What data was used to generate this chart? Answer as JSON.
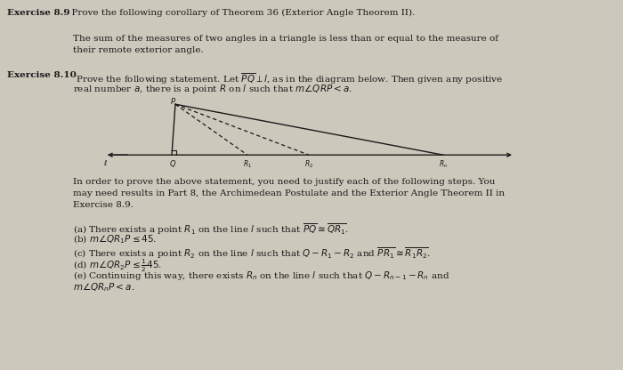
{
  "bg_color": "#cdc8bc",
  "text_color": "#1a1a1a",
  "line_color": "#1a1a1a",
  "fig_w": 7.0,
  "fig_h": 4.16,
  "dpi": 100,
  "ex89_bold": "Exercise 8.9",
  "ex89_rest": "  Prove the following corollary of Theorem 36 (Exterior Angle Theorem II).",
  "para89_line1": "The sum of the measures of two angles in a triangle is less than or equal to the measure of",
  "para89_line2": "their remote exterior angle.",
  "ex810_bold": "Exercise 8.10",
  "ex810_rest1": " Prove the following statement. Let $\\overline{PQ} \\perp l$, as in the diagram below. Then given any positive",
  "ex810_rest2": "real number $a$, there is a point $R$ on $l$ such that $m\\angle QRP < a$.",
  "para810_l1": "In order to prove the above statement, you need to justify each of the following steps. You",
  "para810_l2": "may need results in Part 8, the Archimedean Postulate and the Exterior Angle Theorem II in",
  "para810_l3": "Exercise 8.9.",
  "item_a": "(a) There exists a point $R_1$ on the line $l$ such that $\\overline{PQ} \\cong \\overline{QR_1}$.",
  "item_b": "(b) $m\\angle QR_1P \\leq 45$.",
  "item_c": "(c) There exists a point $R_2$ on the line $l$ such that $Q - R_1 - R_2$ and $\\overline{PR_1} \\cong \\overline{R_1R_2}$.",
  "item_d": "(d) $m\\angle QR_2P \\leq \\frac{1}{2}45$.",
  "item_e1": "(e) Continuing this way, there exists $R_n$ on the line $l$ such that $Q - R_{n-1} - R_n$ and",
  "item_e2": "$m\\angle QR_nP < a$.",
  "fs_main": 7.5,
  "fs_bold": 7.5,
  "fs_small": 6.5
}
